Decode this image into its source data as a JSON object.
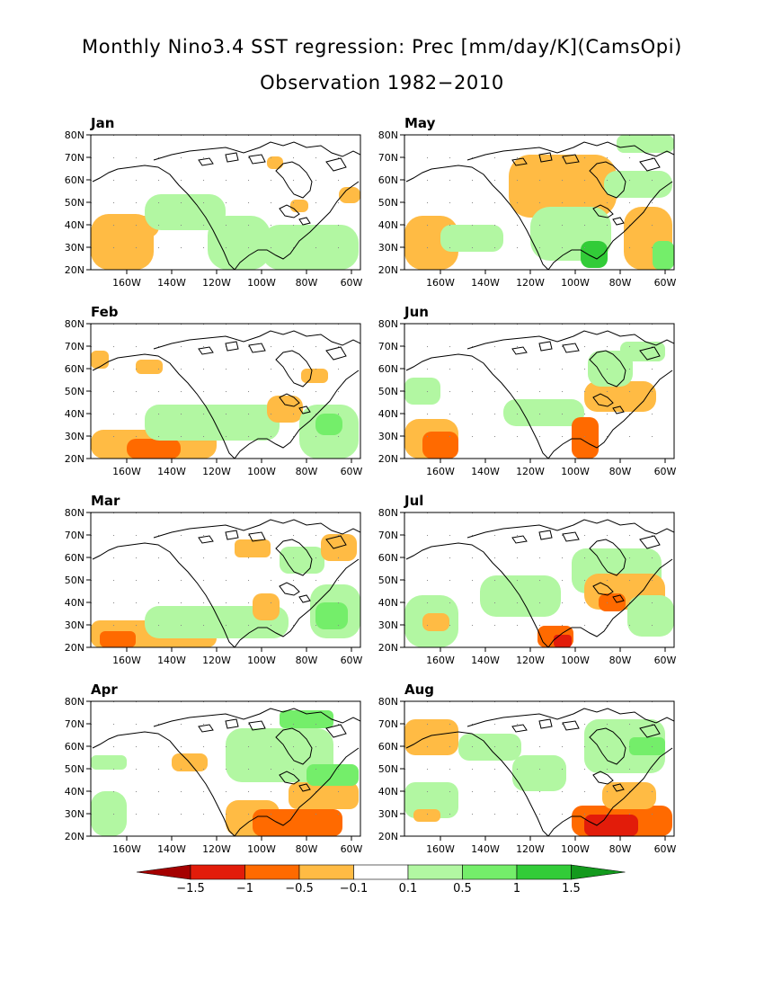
{
  "title": {
    "line1": "Monthly Nino3.4 SST regression: Prec [mm/day/K](CamsOpi)",
    "line2": "Observation 1982−2010"
  },
  "panels": [
    {
      "month": "Jan"
    },
    {
      "month": "May"
    },
    {
      "month": "Feb"
    },
    {
      "month": "Jun"
    },
    {
      "month": "Mar"
    },
    {
      "month": "Jul"
    },
    {
      "month": "Apr"
    },
    {
      "month": "Aug"
    }
  ],
  "axes": {
    "lat_ticks": [
      "20N",
      "30N",
      "40N",
      "50N",
      "60N",
      "70N",
      "80N"
    ],
    "lon_ticks": [
      "160W",
      "140W",
      "120W",
      "100W",
      "80W",
      "60W"
    ]
  },
  "colorbar": {
    "labels": [
      "−1.5",
      "−1",
      "−0.5",
      "−0.1",
      "0.1",
      "0.5",
      "1",
      "1.5"
    ],
    "colors": [
      "#a50000",
      "#e21c0a",
      "#ff6a00",
      "#ffbb44",
      "#ffffff",
      "#b2f7a2",
      "#74ee6a",
      "#32cc38",
      "#139a1d"
    ]
  }
}
